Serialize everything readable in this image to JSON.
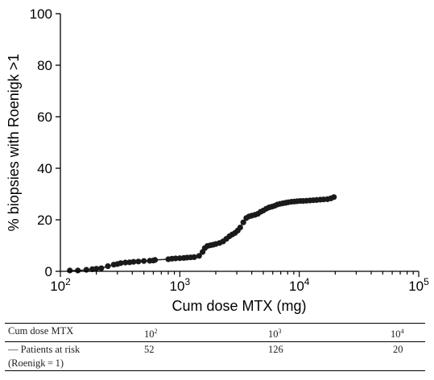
{
  "chart_data": {
    "type": "scatter",
    "xlabel": "Cum dose MTX (mg)",
    "ylabel": "% biopsies with Roenigk >1",
    "x_scale": "log",
    "xlim": [
      100,
      100000
    ],
    "ylim": [
      0,
      100
    ],
    "x_ticks": [
      {
        "base": "10",
        "exp": "2",
        "value": 100
      },
      {
        "base": "10",
        "exp": "3",
        "value": 1000
      },
      {
        "base": "10",
        "exp": "4",
        "value": 10000
      },
      {
        "base": "10",
        "exp": "5",
        "value": 100000
      }
    ],
    "y_ticks": [
      0,
      20,
      40,
      60,
      80,
      100
    ],
    "grid": false,
    "points": [
      [
        120,
        0.3
      ],
      [
        140,
        0.3
      ],
      [
        165,
        0.6
      ],
      [
        185,
        0.8
      ],
      [
        200,
        1
      ],
      [
        220,
        1.2
      ],
      [
        250,
        2
      ],
      [
        280,
        2.6
      ],
      [
        300,
        2.8
      ],
      [
        320,
        3.2
      ],
      [
        350,
        3.4
      ],
      [
        380,
        3.5
      ],
      [
        410,
        3.7
      ],
      [
        450,
        3.8
      ],
      [
        500,
        4
      ],
      [
        560,
        4.1
      ],
      [
        600,
        4.2
      ],
      [
        620,
        4.4
      ],
      [
        800,
        4.7
      ],
      [
        860,
        4.9
      ],
      [
        920,
        5
      ],
      [
        1000,
        5.1
      ],
      [
        1080,
        5.2
      ],
      [
        1150,
        5.3
      ],
      [
        1230,
        5.4
      ],
      [
        1320,
        5.5
      ],
      [
        1450,
        6
      ],
      [
        1550,
        7.5
      ],
      [
        1620,
        9
      ],
      [
        1700,
        9.8
      ],
      [
        1800,
        10.1
      ],
      [
        1900,
        10.3
      ],
      [
        2000,
        10.6
      ],
      [
        2150,
        11
      ],
      [
        2300,
        11.6
      ],
      [
        2450,
        12.6
      ],
      [
        2600,
        13.6
      ],
      [
        2750,
        14.3
      ],
      [
        2900,
        14.9
      ],
      [
        3050,
        15.8
      ],
      [
        3200,
        17
      ],
      [
        3400,
        19
      ],
      [
        3600,
        20.7
      ],
      [
        3800,
        21.3
      ],
      [
        4000,
        21.6
      ],
      [
        4250,
        21.9
      ],
      [
        4500,
        22.3
      ],
      [
        4750,
        23.1
      ],
      [
        5000,
        23.6
      ],
      [
        5300,
        24.3
      ],
      [
        5600,
        24.8
      ],
      [
        5900,
        25.1
      ],
      [
        6200,
        25.4
      ],
      [
        6550,
        25.9
      ],
      [
        6900,
        26.2
      ],
      [
        7300,
        26.4
      ],
      [
        7700,
        26.6
      ],
      [
        8100,
        26.8
      ],
      [
        8600,
        27
      ],
      [
        9100,
        27.1
      ],
      [
        9600,
        27.2
      ],
      [
        10200,
        27.3
      ],
      [
        10800,
        27.3
      ],
      [
        11500,
        27.4
      ],
      [
        12300,
        27.5
      ],
      [
        13100,
        27.6
      ],
      [
        14000,
        27.7
      ],
      [
        15000,
        27.8
      ],
      [
        16000,
        27.9
      ],
      [
        17200,
        28
      ],
      [
        18400,
        28.3
      ],
      [
        19500,
        28.8
      ]
    ]
  },
  "table": {
    "header": {
      "label": "Cum dose MTX",
      "v1": {
        "base": "10",
        "exp": "2"
      },
      "v2": {
        "base": "10",
        "exp": "3"
      },
      "v3": {
        "base": "10",
        "exp": "4"
      }
    },
    "row": {
      "label_line1": "— Patients at risk",
      "label_line2": "(Roenigk = 1)",
      "v1": "52",
      "v2": "126",
      "v3": "20"
    }
  }
}
